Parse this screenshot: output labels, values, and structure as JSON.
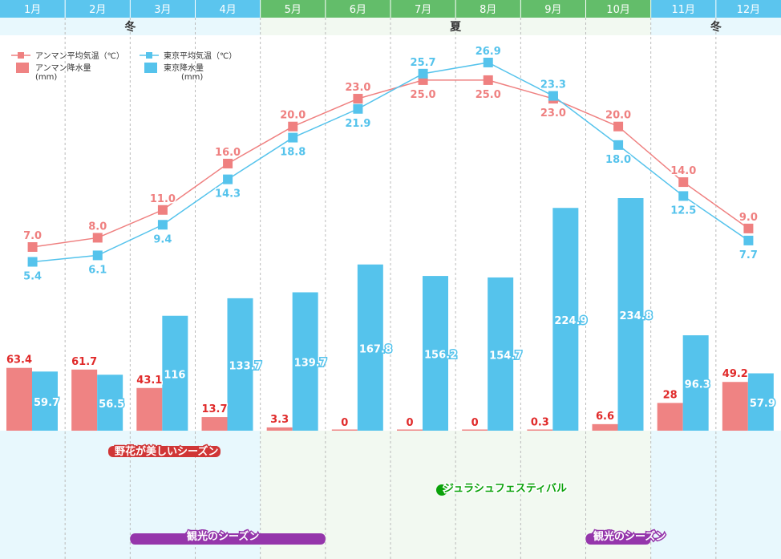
{
  "chart_data": {
    "type": "bar+line",
    "months": [
      "1月",
      "2月",
      "3月",
      "4月",
      "5月",
      "6月",
      "7月",
      "8月",
      "9月",
      "10月",
      "11月",
      "12月"
    ],
    "month_header_colors": [
      "#5bc5ee",
      "#5bc5ee",
      "#5bc5ee",
      "#5bc5ee",
      "#63bd6a",
      "#63bd6a",
      "#63bd6a",
      "#63bd6a",
      "#63bd6a",
      "#63bd6a",
      "#5bc5ee",
      "#5bc5ee"
    ],
    "seasons": [
      {
        "label": "冬",
        "from": 0,
        "to": 4,
        "color": "#e8f8fd"
      },
      {
        "label": "夏",
        "from": 4,
        "to": 10,
        "color": "#f2f9f1"
      },
      {
        "label": "冬",
        "from": 10,
        "to": 12,
        "color": "#e8f8fd"
      }
    ],
    "series": [
      {
        "name": "アンマン平均気温（℃）",
        "kind": "line",
        "color": "#ef8080",
        "values": [
          7.0,
          8.0,
          11.0,
          16.0,
          20.0,
          23.0,
          25.0,
          25.0,
          23.0,
          20.0,
          14.0,
          9.0
        ]
      },
      {
        "name": "東京平均気温（℃）",
        "kind": "line",
        "color": "#55c3ec",
        "values": [
          5.4,
          6.1,
          9.4,
          14.3,
          18.8,
          21.9,
          25.7,
          26.9,
          23.3,
          18.0,
          12.5,
          7.7
        ]
      },
      {
        "name": "アンマン降水量",
        "unit": "(mm)",
        "kind": "bar",
        "color": "#ef8383",
        "values": [
          63.4,
          61.7,
          43.1,
          13.7,
          3.3,
          0,
          0,
          0,
          0.3,
          6.6,
          28,
          49.2
        ]
      },
      {
        "name": "東京降水量",
        "unit": "(mm)",
        "kind": "bar",
        "color": "#55c3ec",
        "values": [
          59.7,
          56.5,
          116,
          133.7,
          139.7,
          167.8,
          156.2,
          154.7,
          224.9,
          234.8,
          96.3,
          57.9
        ]
      }
    ],
    "events": [
      {
        "label": "野花が美しいシーズン",
        "from": 1.65,
        "to": 3.3,
        "color": "#d03636",
        "row": 0
      },
      {
        "label": "ジュラシュフェスティバル",
        "from": 6.7,
        "to": 6.9,
        "color": "#0aa20a",
        "row": 1
      },
      {
        "label": "観光のシーズン",
        "from": 2.0,
        "to": 5.0,
        "color": "#9536ab",
        "row": 2
      },
      {
        "label": "観光のシーズン",
        "from": 9.0,
        "to": 10.0,
        "color": "#9536ab",
        "row": 2
      }
    ]
  }
}
